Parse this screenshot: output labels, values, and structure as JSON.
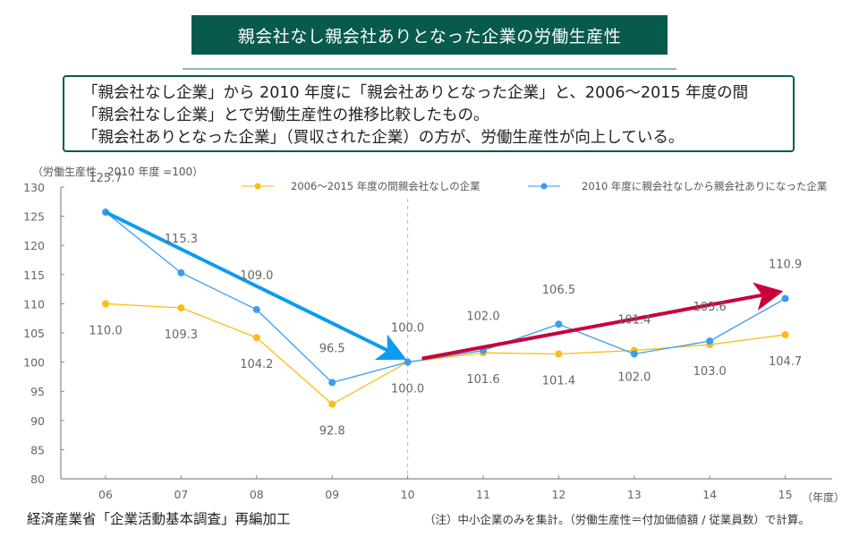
{
  "header": {
    "title": "親会社なし親会社ありとなった企業の労働生産性"
  },
  "summary": {
    "lines": [
      "「親会社なし企業」から 2010 年度に「親会社ありとなった企業」と、2006～2015 年度の間",
      "「親会社なし企業」とで労働生産性の推移比較したもの。",
      "「親会社ありとなった企業」（買収された企業）の方が、労働生産性が向上している。"
    ]
  },
  "colors": {
    "title_bg": "#075a4c",
    "border": "#075a4c",
    "series_no_parent": "#fbbd14",
    "series_acquired": "#3b9cf3",
    "arrow_decline": "#0d9bef",
    "arrow_rise": "#c8003c"
  },
  "chart_data": {
    "type": "line",
    "title": "親会社なし親会社ありとなった企業の労働生産性",
    "ylabel": "（労働生産性　2010 年度 =100）",
    "xlabel": "（年度）",
    "categories": [
      "06",
      "07",
      "08",
      "09",
      "10",
      "11",
      "12",
      "13",
      "14",
      "15"
    ],
    "ylim": [
      80,
      130
    ],
    "yticks": [
      80,
      85,
      90,
      95,
      100,
      105,
      110,
      115,
      120,
      125,
      130
    ],
    "grid": false,
    "reference_line": {
      "x": "10",
      "style": "dashed"
    },
    "legend_position": "top",
    "series": [
      {
        "name": "2006～2015 年度の間親会社なしの企業",
        "color": "#fbbd14",
        "values": [
          110.0,
          109.3,
          104.2,
          92.8,
          100.0,
          101.6,
          101.4,
          102.0,
          103.0,
          104.7
        ],
        "label_position": [
          "below",
          "below",
          "below",
          "below",
          "below",
          "below",
          "below",
          "below",
          "below",
          "below"
        ]
      },
      {
        "name": "2010 年度に親会社なしから親会社ありになった企業",
        "color": "#3b9cf3",
        "values": [
          125.7,
          115.3,
          109.0,
          96.5,
          100.0,
          102.0,
          106.5,
          101.4,
          103.6,
          110.9
        ],
        "label_position": [
          "above",
          "above",
          "above",
          "above",
          "above",
          "above",
          "above",
          "above",
          "above",
          "above"
        ]
      }
    ],
    "annotations": [
      {
        "type": "arrow",
        "from": [
          "06",
          125.7
        ],
        "to": [
          "10",
          100.0
        ],
        "color": "#0d9bef",
        "meaning": "decline"
      },
      {
        "type": "arrow",
        "from": [
          "10",
          100.0
        ],
        "to": [
          "15",
          110.9
        ],
        "color": "#c8003c",
        "meaning": "rise"
      }
    ]
  },
  "footer": {
    "source": "経済産業省「企業活動基本調査」再編加工",
    "note": "（注）中小企業のみを集計。（労働生産性＝付加価値額 / 従業員数）で計算。"
  }
}
